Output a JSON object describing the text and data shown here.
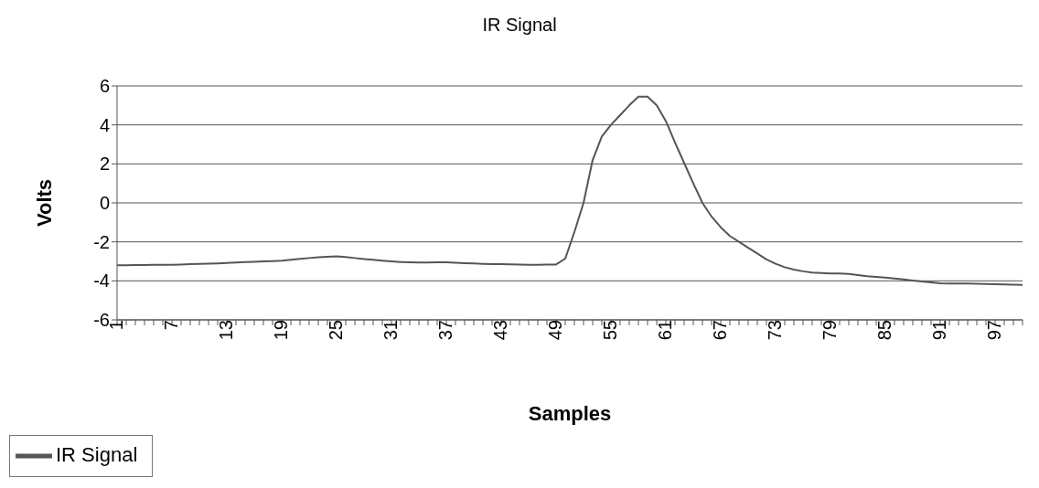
{
  "chart_data": {
    "type": "line",
    "title": "IR Signal",
    "xlabel": "Samples",
    "ylabel": "Volts",
    "categories": [
      "1",
      null,
      null,
      null,
      null,
      null,
      "7",
      null,
      null,
      null,
      null,
      null,
      "13",
      null,
      null,
      null,
      null,
      null,
      "19",
      null,
      null,
      null,
      null,
      null,
      "25",
      null,
      null,
      null,
      null,
      null,
      "31",
      null,
      null,
      null,
      null,
      null,
      "37",
      null,
      null,
      null,
      null,
      null,
      "43",
      null,
      null,
      null,
      null,
      null,
      "49",
      null,
      null,
      null,
      null,
      null,
      "55",
      null,
      null,
      null,
      null,
      null,
      "61",
      null,
      null,
      null,
      null,
      null,
      "67",
      null,
      null,
      null,
      null,
      null,
      "73",
      null,
      null,
      null,
      null,
      null,
      "79",
      null,
      null,
      null,
      null,
      null,
      "85",
      null,
      null,
      null,
      null,
      null,
      "91",
      null,
      null,
      null,
      null,
      null,
      "97",
      null,
      null,
      null
    ],
    "series": [
      {
        "name": "IR Signal",
        "color": "#555555",
        "values": [
          -3.2,
          -3.2,
          -3.19,
          -3.19,
          -3.18,
          -3.18,
          -3.17,
          -3.16,
          -3.14,
          -3.13,
          -3.12,
          -3.1,
          -3.08,
          -3.06,
          -3.04,
          -3.02,
          -3.0,
          -2.99,
          -2.97,
          -2.92,
          -2.87,
          -2.83,
          -2.79,
          -2.76,
          -2.74,
          -2.78,
          -2.83,
          -2.88,
          -2.92,
          -2.96,
          -3.0,
          -3.03,
          -3.05,
          -3.06,
          -3.06,
          -3.05,
          -3.05,
          -3.07,
          -3.09,
          -3.11,
          -3.13,
          -3.14,
          -3.14,
          -3.15,
          -3.16,
          -3.17,
          -3.17,
          -3.16,
          -3.16,
          -2.86,
          -1.5,
          0.0,
          2.2,
          3.4,
          4.0,
          4.5,
          5.0,
          5.45,
          5.45,
          5.0,
          4.2,
          3.1,
          2.05,
          1.0,
          0.0,
          -0.7,
          -1.25,
          -1.7,
          -2.0,
          -2.3,
          -2.6,
          -2.9,
          -3.12,
          -3.3,
          -3.42,
          -3.51,
          -3.57,
          -3.6,
          -3.62,
          -3.62,
          -3.65,
          -3.7,
          -3.76,
          -3.8,
          -3.83,
          -3.88,
          -3.93,
          -3.98,
          -4.03,
          -4.08,
          -4.12,
          -4.14,
          -4.14,
          -4.14,
          -4.15,
          -4.16,
          -4.17,
          -4.18,
          -4.2,
          -4.21
        ]
      }
    ],
    "ylim": [
      -6,
      6
    ],
    "yticks": [
      -6,
      -4,
      -2,
      0,
      2,
      4,
      6
    ],
    "grid": "y",
    "legend": "bottom left",
    "marker": "none",
    "line_style": "solid"
  }
}
